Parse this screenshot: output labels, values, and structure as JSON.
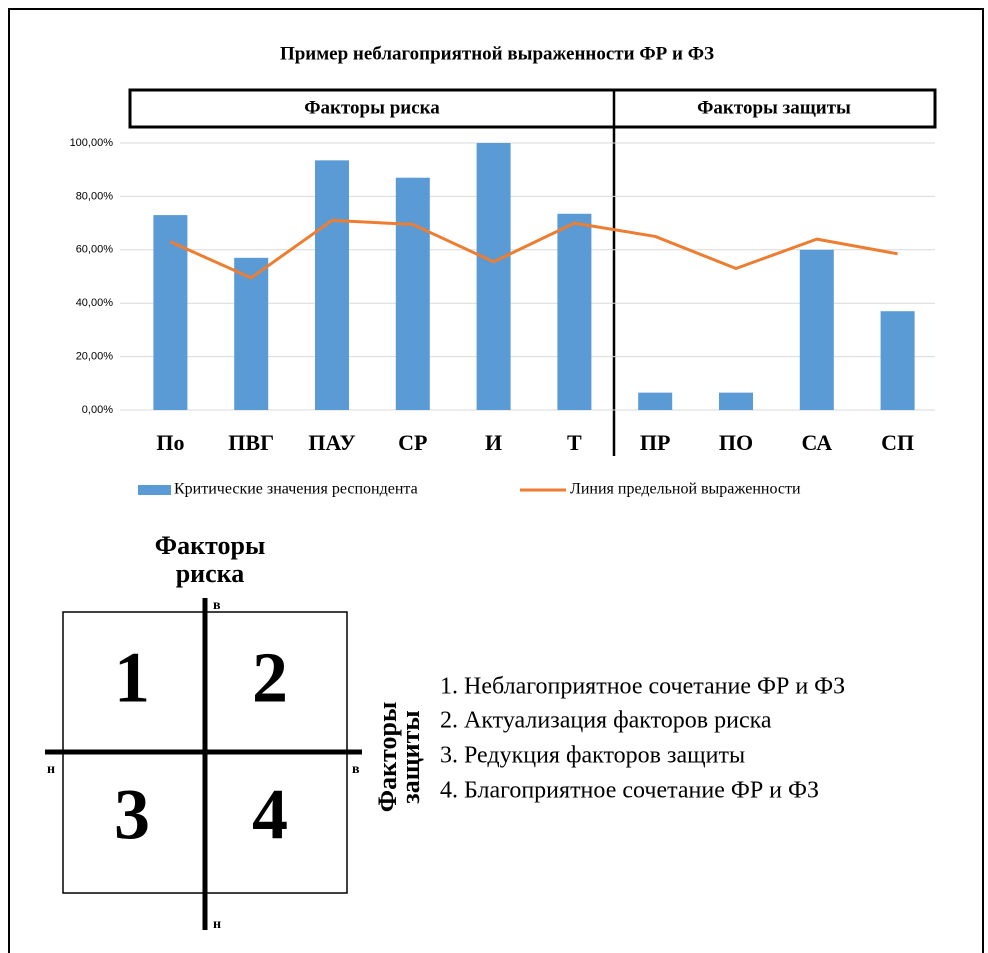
{
  "chart_data": {
    "type": "bar",
    "title": "Пример неблагоприятной выраженности ФР и ФЗ",
    "groups": [
      "Факторы риска",
      "Факторы защиты"
    ],
    "categories": [
      "По",
      "ПВГ",
      "ПАУ",
      "СР",
      "И",
      "Т",
      "ПР",
      "ПО",
      "СА",
      "СП"
    ],
    "series": [
      {
        "name": "Критические значения респондента",
        "color": "#5b9bd5",
        "kind": "bar",
        "values": [
          73,
          57,
          93.5,
          87,
          100,
          73.5,
          6.5,
          6.5,
          60,
          37
        ]
      },
      {
        "name": "Линия предельной выраженности",
        "color": "#ed7d31",
        "kind": "line",
        "values": [
          63,
          49.5,
          71,
          69.5,
          55.5,
          70,
          65,
          53,
          64,
          58.5
        ]
      }
    ],
    "ylim": [
      0,
      100
    ],
    "yticks": [
      {
        "value": 0,
        "label": "0,00%"
      },
      {
        "value": 20,
        "label": "20,00%"
      },
      {
        "value": 40,
        "label": "40,00%"
      },
      {
        "value": 60,
        "label": "60,00%"
      },
      {
        "value": 80,
        "label": "80,00%"
      },
      {
        "value": 100,
        "label": "100,00%"
      }
    ],
    "grid": true,
    "legend": "bottom"
  },
  "diagram": {
    "vertical_axis_label": [
      "Факторы",
      "риска"
    ],
    "horizontal_axis_label": [
      "Факторы",
      "защиты"
    ],
    "top": "в",
    "bottom": "н",
    "left": "н",
    "right": "в",
    "quadrants": [
      "1",
      "2",
      "3",
      "4"
    ],
    "legend": [
      "1. Неблагоприятное сочетание ФР и ФЗ",
      "2. Актуализация факторов риска",
      "3. Редукция факторов защиты",
      "4. Благоприятное сочетание ФР и ФЗ"
    ]
  }
}
